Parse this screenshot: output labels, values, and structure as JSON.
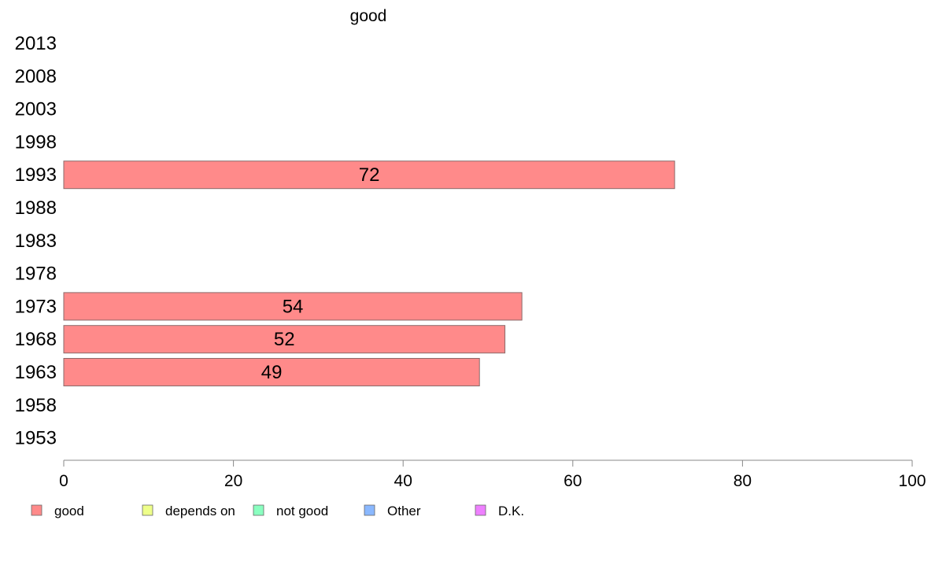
{
  "chart_data": {
    "type": "bar",
    "orientation": "horizontal",
    "title": "good",
    "categories": [
      "2013",
      "2008",
      "2003",
      "1998",
      "1993",
      "1988",
      "1983",
      "1978",
      "1973",
      "1968",
      "1963",
      "1958",
      "1953"
    ],
    "series": [
      {
        "name": "good",
        "values": [
          null,
          null,
          null,
          null,
          72,
          null,
          null,
          null,
          54,
          52,
          49,
          null,
          null
        ],
        "color": "#ff8a8a"
      }
    ],
    "data_labels": [
      null,
      null,
      null,
      null,
      "72",
      null,
      null,
      null,
      "54",
      "52",
      "49",
      null,
      null
    ],
    "xlim": [
      0,
      100
    ],
    "xticks": [
      0,
      20,
      40,
      60,
      80,
      100
    ],
    "grid": false,
    "legend_position": "bottom",
    "legend": [
      {
        "label": "good",
        "color": "#ff8a8a"
      },
      {
        "label": "depends on",
        "color": "#eeff8a"
      },
      {
        "label": "not good",
        "color": "#8affc0"
      },
      {
        "label": "Other",
        "color": "#8ab8ff"
      },
      {
        "label": "D.K.",
        "color": "#ee80ff"
      }
    ]
  }
}
